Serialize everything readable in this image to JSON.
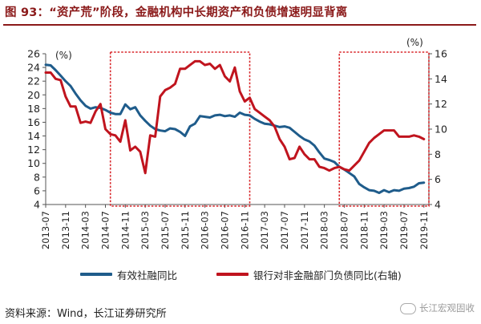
{
  "title": "图 93：“资产荒”阶段，金融机构中长期资产和负债增速明显背离",
  "source": "资料来源：Wind，长江证券研究所",
  "watermark": "长江宏观固收",
  "colors": {
    "title": "#8b1a1a",
    "series_blue": "#1f5c8b",
    "series_red": "#c0141e",
    "highlight_box": "#d8262a"
  },
  "chart_data": {
    "type": "line",
    "x_tick_labels": [
      "2013-07",
      "2013-11",
      "2014-03",
      "2014-07",
      "2014-11",
      "2015-03",
      "2015-07",
      "2015-11",
      "2016-03",
      "2016-07",
      "2016-11",
      "2017-03",
      "2017-07",
      "2017-11",
      "2018-03",
      "2018-07",
      "2018-11",
      "2019-03",
      "2019-07",
      "2019-11"
    ],
    "x_range": [
      0,
      77
    ],
    "y_left": {
      "unit_label": "(%)",
      "range": [
        4,
        26
      ],
      "ticks": [
        4,
        6,
        8,
        10,
        12,
        14,
        16,
        18,
        20,
        22,
        24,
        26
      ]
    },
    "y_right": {
      "unit_label": "(%)",
      "range": [
        4,
        16
      ],
      "ticks": [
        4,
        6,
        8,
        10,
        12,
        14,
        16
      ]
    },
    "highlight_regions": [
      {
        "x_start": 13,
        "x_end": 41
      },
      {
        "x_start": 59,
        "x_end": 77
      }
    ],
    "series": [
      {
        "name": "有效社融同比",
        "axis": "left",
        "color": "#1f5c8b",
        "x": [
          0,
          1,
          2,
          3,
          4,
          5,
          6,
          7,
          8,
          9,
          10,
          11,
          12,
          13,
          14,
          15,
          16,
          17,
          18,
          19,
          20,
          21,
          22,
          23,
          24,
          25,
          26,
          27,
          28,
          29,
          30,
          31,
          32,
          33,
          34,
          35,
          36,
          37,
          38,
          39,
          40,
          41,
          42,
          43,
          44,
          45,
          46,
          47,
          48,
          49,
          50,
          51,
          52,
          53,
          54,
          55,
          56,
          57,
          58,
          59,
          60,
          61,
          62,
          63,
          64,
          65,
          66,
          67,
          68,
          69,
          70,
          71,
          72,
          73,
          74,
          75,
          76
        ],
        "values": [
          24.4,
          24.3,
          23.6,
          22.8,
          22.0,
          21.3,
          20.2,
          19.2,
          18.4,
          18.0,
          18.2,
          18.1,
          17.8,
          17.4,
          17.2,
          17.2,
          18.6,
          17.9,
          18.2,
          17.0,
          16.2,
          15.5,
          15.0,
          14.8,
          14.7,
          15.1,
          15.0,
          14.6,
          14.0,
          15.4,
          15.8,
          16.9,
          16.8,
          16.7,
          17.0,
          17.1,
          16.9,
          17.0,
          16.8,
          17.4,
          17.1,
          17.0,
          16.5,
          16.1,
          15.8,
          15.7,
          15.5,
          15.3,
          15.4,
          15.2,
          14.6,
          14.0,
          13.5,
          13.2,
          12.6,
          11.6,
          10.7,
          10.5,
          10.2,
          9.5,
          9.1,
          8.6,
          8.1,
          7.0,
          6.5,
          6.1,
          6.0,
          5.7,
          6.1,
          5.8,
          6.1,
          6.0,
          6.3,
          6.4,
          6.6,
          7.1,
          7.2
        ]
      },
      {
        "name": "银行对非金融部门负债同比(右轴)",
        "axis": "right",
        "color": "#c0141e",
        "x": [
          0,
          1,
          2,
          3,
          4,
          5,
          6,
          7,
          8,
          9,
          10,
          11,
          12,
          13,
          14,
          15,
          16,
          17,
          18,
          19,
          20,
          21,
          22,
          23,
          24,
          25,
          26,
          27,
          28,
          29,
          30,
          31,
          32,
          33,
          34,
          35,
          36,
          37,
          38,
          39,
          40,
          41,
          42,
          43,
          44,
          45,
          46,
          47,
          48,
          49,
          50,
          51,
          52,
          53,
          54,
          55,
          56,
          57,
          58,
          59,
          60,
          61,
          62,
          63,
          64,
          65,
          66,
          67,
          68,
          69,
          70,
          71,
          72,
          73,
          74,
          75,
          76
        ],
        "values": [
          14.5,
          14.5,
          14.0,
          13.9,
          12.6,
          11.8,
          11.8,
          10.5,
          10.6,
          10.5,
          11.4,
          12.0,
          10.0,
          9.6,
          9.5,
          9.0,
          10.7,
          8.3,
          8.6,
          8.2,
          6.5,
          9.5,
          9.4,
          12.6,
          13.1,
          13.3,
          13.6,
          14.8,
          14.8,
          15.1,
          15.4,
          15.4,
          15.1,
          15.2,
          14.8,
          15.1,
          14.2,
          13.8,
          14.9,
          13.0,
          12.2,
          12.5,
          11.6,
          11.3,
          11.0,
          10.7,
          10.2,
          9.2,
          8.6,
          7.6,
          7.7,
          8.6,
          8.0,
          7.6,
          7.6,
          7.0,
          6.9,
          6.7,
          6.9,
          7.0,
          6.8,
          6.7,
          7.1,
          7.5,
          8.2,
          8.9,
          9.3,
          9.6,
          9.9,
          9.9,
          9.9,
          9.4,
          9.4,
          9.4,
          9.5,
          9.4,
          9.2
        ]
      }
    ]
  }
}
